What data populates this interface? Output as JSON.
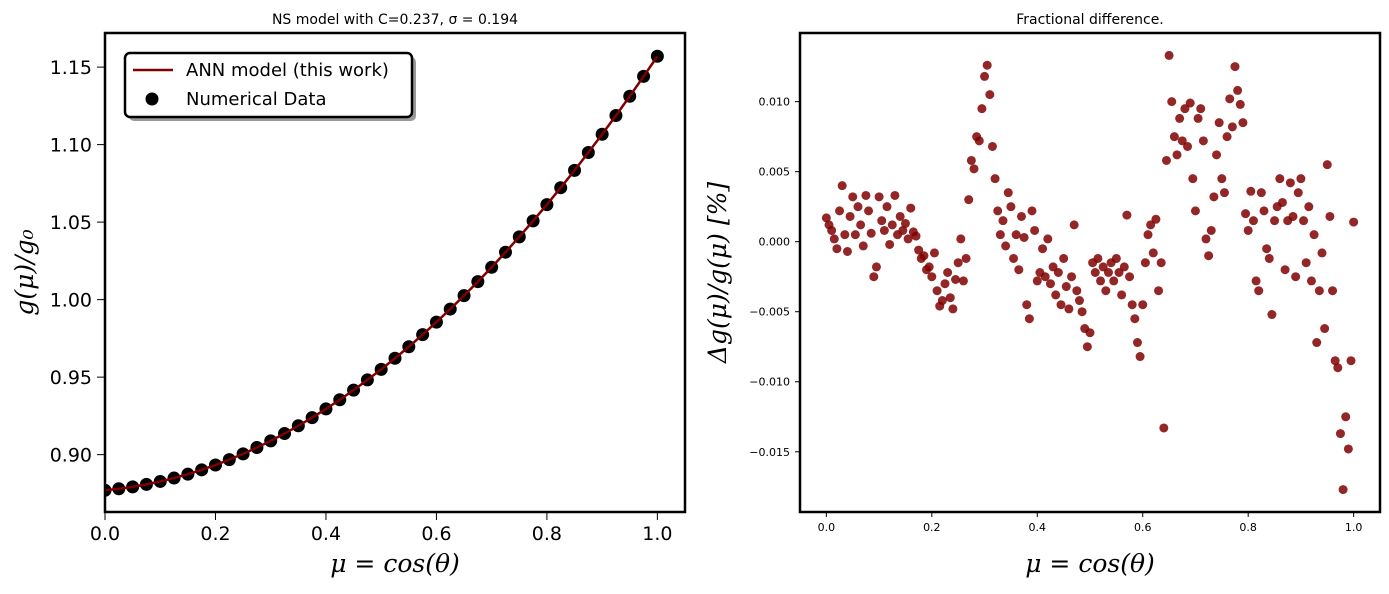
{
  "chart_data": [
    {
      "type": "line",
      "title": "NS model with C=0.237, σ = 0.194",
      "x_label": "μ = cos(θ)",
      "y_label": "g(μ)/g₀",
      "x": [
        0,
        0.025,
        0.05,
        0.075,
        0.1,
        0.125,
        0.15,
        0.175,
        0.2,
        0.225,
        0.25,
        0.275,
        0.3,
        0.325,
        0.35,
        0.375,
        0.4,
        0.425,
        0.45,
        0.475,
        0.5,
        0.525,
        0.55,
        0.575,
        0.6,
        0.625,
        0.65,
        0.675,
        0.7,
        0.725,
        0.75,
        0.775,
        0.8,
        0.825,
        0.85,
        0.875,
        0.9,
        0.925,
        0.95,
        0.975,
        1.0
      ],
      "series": [
        {
          "name": "Numerical Data",
          "type": "scatter",
          "color": "#000000",
          "values": [
            0.877,
            0.878,
            0.8792,
            0.8808,
            0.8827,
            0.8849,
            0.8874,
            0.8902,
            0.8933,
            0.8968,
            0.9005,
            0.9046,
            0.9089,
            0.9136,
            0.9186,
            0.9239,
            0.9295,
            0.9354,
            0.9416,
            0.9482,
            0.955,
            0.9622,
            0.9696,
            0.9774,
            0.9855,
            0.9939,
            1.0026,
            1.0116,
            1.0209,
            1.0306,
            1.0405,
            1.0508,
            1.0613,
            1.0722,
            1.0834,
            1.0949,
            1.1067,
            1.1188,
            1.1312,
            1.144,
            1.157
          ]
        },
        {
          "name": "ANN model (this work)",
          "type": "line",
          "color": "#800000",
          "values": [
            0.877,
            0.878,
            0.8792,
            0.8808,
            0.8827,
            0.8849,
            0.8874,
            0.8902,
            0.8933,
            0.8968,
            0.9005,
            0.9046,
            0.9089,
            0.9136,
            0.9186,
            0.9239,
            0.9295,
            0.9354,
            0.9416,
            0.9482,
            0.955,
            0.9622,
            0.9696,
            0.9774,
            0.9855,
            0.9939,
            1.0026,
            1.0116,
            1.0209,
            1.0306,
            1.0405,
            1.0508,
            1.0613,
            1.0722,
            1.0834,
            1.0949,
            1.1067,
            1.1188,
            1.1312,
            1.144,
            1.157
          ]
        }
      ],
      "xlim": [
        0,
        1.05
      ],
      "ylim": [
        0.863,
        1.172
      ],
      "xticks": [
        {
          "value": 0,
          "label": "0.0"
        },
        0.2,
        0.4,
        0.6,
        0.8,
        {
          "value": 1,
          "label": "1.0"
        }
      ],
      "yticks": [
        {
          "value": 0.9,
          "label": "0.90"
        },
        0.95,
        {
          "value": 1,
          "label": "1.00"
        },
        1.05,
        {
          "value": 1.1,
          "label": "1.10"
        },
        1.15
      ],
      "legend": "upper left"
    },
    {
      "type": "scatter",
      "title": "Fractional difference.",
      "x_label": "μ = cos(θ)",
      "y_label": "Δg(μ)/g(μ)  [%]",
      "x": [
        0,
        0.005,
        0.01,
        0.015,
        0.02,
        0.025,
        0.03,
        0.035,
        0.04,
        0.045,
        0.05,
        0.055,
        0.06,
        0.065,
        0.07,
        0.075,
        0.08,
        0.085,
        0.09,
        0.095,
        0.1,
        0.105,
        0.11,
        0.115,
        0.12,
        0.125,
        0.13,
        0.135,
        0.14,
        0.145,
        0.15,
        0.155,
        0.16,
        0.165,
        0.17,
        0.175,
        0.18,
        0.185,
        0.19,
        0.195,
        0.2,
        0.205,
        0.21,
        0.215,
        0.22,
        0.225,
        0.23,
        0.235,
        0.24,
        0.245,
        0.25,
        0.255,
        0.26,
        0.265,
        0.27,
        0.275,
        0.28,
        0.285,
        0.29,
        0.295,
        0.3,
        0.305,
        0.31,
        0.315,
        0.32,
        0.325,
        0.33,
        0.335,
        0.34,
        0.345,
        0.35,
        0.355,
        0.36,
        0.365,
        0.37,
        0.375,
        0.38,
        0.385,
        0.39,
        0.395,
        0.4,
        0.405,
        0.41,
        0.415,
        0.42,
        0.425,
        0.43,
        0.435,
        0.44,
        0.445,
        0.45,
        0.455,
        0.46,
        0.465,
        0.47,
        0.475,
        0.48,
        0.485,
        0.49,
        0.495,
        0.5,
        0.505,
        0.51,
        0.515,
        0.52,
        0.525,
        0.53,
        0.535,
        0.54,
        0.545,
        0.55,
        0.555,
        0.56,
        0.565,
        0.57,
        0.575,
        0.58,
        0.585,
        0.59,
        0.595,
        0.6,
        0.605,
        0.61,
        0.615,
        0.62,
        0.625,
        0.63,
        0.635,
        0.64,
        0.645,
        0.65,
        0.655,
        0.66,
        0.665,
        0.67,
        0.675,
        0.68,
        0.685,
        0.69,
        0.695,
        0.7,
        0.705,
        0.71,
        0.715,
        0.72,
        0.725,
        0.73,
        0.735,
        0.74,
        0.745,
        0.75,
        0.755,
        0.76,
        0.765,
        0.77,
        0.775,
        0.78,
        0.785,
        0.79,
        0.795,
        0.8,
        0.805,
        0.81,
        0.815,
        0.82,
        0.825,
        0.83,
        0.835,
        0.84,
        0.845,
        0.85,
        0.855,
        0.86,
        0.865,
        0.87,
        0.875,
        0.88,
        0.885,
        0.89,
        0.895,
        0.9,
        0.905,
        0.91,
        0.915,
        0.92,
        0.925,
        0.93,
        0.935,
        0.94,
        0.945,
        0.95,
        0.955,
        0.96,
        0.965,
        0.97,
        0.975,
        0.98,
        0.985,
        0.99,
        0.995,
        1.0
      ],
      "color": "#800000",
      "values": [
        0.0017,
        0.0012,
        0.0008,
        0.0002,
        -0.0005,
        0.0022,
        0.004,
        0.0005,
        -0.0007,
        0.0018,
        0.0032,
        0.0005,
        0.0025,
        0.0012,
        -0.0003,
        0.0033,
        0.0022,
        0.0006,
        -0.0025,
        -0.0018,
        0.0032,
        0.0015,
        0.0008,
        0.0025,
        -0.0002,
        0.0012,
        0.0033,
        0.0005,
        0.0018,
        0.0008,
        0.0013,
        0.0002,
        0.0024,
        0.0007,
        0.0004,
        -0.0006,
        -0.0012,
        -0.001,
        -0.002,
        -0.0018,
        -0.0025,
        -0.0008,
        -0.0035,
        -0.0046,
        -0.0042,
        -0.003,
        -0.0022,
        -0.004,
        -0.0048,
        -0.0027,
        -0.0015,
        0.0002,
        -0.0028,
        -0.0012,
        0.003,
        0.0058,
        0.0052,
        0.0075,
        0.0072,
        0.0095,
        0.0118,
        0.0126,
        0.0105,
        0.0068,
        0.0045,
        0.0022,
        0.0005,
        0.0015,
        -0.0003,
        0.0035,
        0.0025,
        -0.0012,
        0.0005,
        -0.002,
        0.0018,
        0.0003,
        -0.0045,
        -0.0055,
        0.0022,
        0.0008,
        -0.0028,
        -0.0022,
        -0.0005,
        -0.0025,
        0.0002,
        -0.003,
        -0.0018,
        -0.0038,
        -0.0022,
        -0.0045,
        -0.0012,
        -0.0032,
        -0.0048,
        -0.0025,
        0.0012,
        -0.0035,
        -0.0042,
        -0.005,
        -0.0062,
        -0.0075,
        -0.0065,
        -0.0015,
        -0.0022,
        -0.0012,
        -0.0028,
        -0.0018,
        -0.0035,
        -0.0022,
        -0.0015,
        -0.0028,
        -0.0012,
        -0.0022,
        -0.0038,
        -0.0018,
        0.0019,
        -0.0025,
        -0.0045,
        -0.0055,
        -0.0072,
        -0.0082,
        -0.0045,
        -0.0015,
        0.0005,
        0.0012,
        -0.0008,
        0.0016,
        -0.0035,
        -0.0015,
        -0.0133,
        0.0058,
        0.0133,
        0.01,
        0.0075,
        0.0062,
        0.0088,
        0.0072,
        0.0095,
        0.0068,
        0.0099,
        0.0045,
        0.0022,
        0.0088,
        0.0095,
        0.0072,
        0.0002,
        -0.001,
        0.0008,
        0.0032,
        0.0062,
        0.0085,
        0.0045,
        0.0035,
        0.0075,
        0.0102,
        0.0082,
        0.0125,
        0.0108,
        0.0098,
        0.0085,
        0.002,
        0.0008,
        0.0036,
        0.0015,
        -0.0028,
        -0.0035,
        0.0035,
        0.0022,
        -0.0005,
        -0.0012,
        -0.0052,
        0.0015,
        0.0025,
        0.0045,
        0.0028,
        -0.002,
        0.0015,
        0.0042,
        0.0018,
        -0.0025,
        0.0035,
        0.0045,
        0.0015,
        -0.0015,
        0.0025,
        -0.0028,
        0.0005,
        -0.0072,
        -0.0035,
        -0.0008,
        -0.0062,
        0.0055,
        0.0018,
        -0.0035,
        -0.0085,
        -0.009,
        -0.0137,
        -0.0177,
        -0.0125,
        -0.0148,
        -0.0085,
        0.0014
      ],
      "xlim": [
        -0.05,
        1.05
      ],
      "ylim": [
        -0.0193,
        0.0149
      ],
      "xticks": [
        {
          "value": 0,
          "label": "0.0"
        },
        0.2,
        0.4,
        0.6,
        0.8,
        {
          "value": 1,
          "label": "1.0"
        }
      ],
      "yticks": [
        {
          "value": -0.015,
          "label": "−0.015"
        },
        {
          "value": -0.01,
          "label": "−0.010"
        },
        {
          "value": -0.005,
          "label": "−0.005"
        },
        {
          "value": 0,
          "label": "0.000"
        },
        0.005,
        {
          "value": 0.01,
          "label": "0.010"
        }
      ]
    }
  ]
}
